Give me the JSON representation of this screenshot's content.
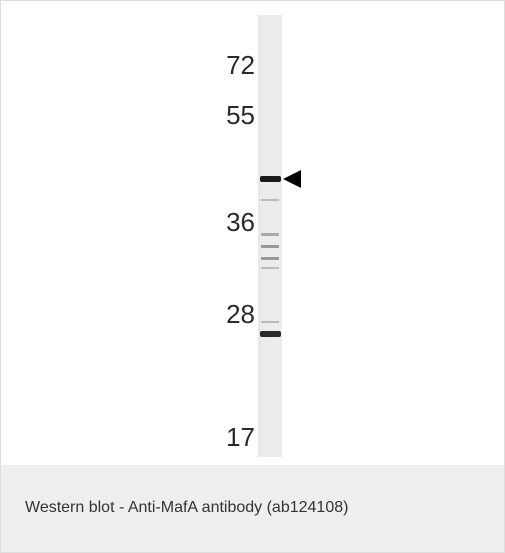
{
  "figure": {
    "markers": [
      "72",
      "55",
      "36",
      "28",
      "17"
    ],
    "caption": "Western blot - Anti-MafA antibody (ab124108)"
  }
}
